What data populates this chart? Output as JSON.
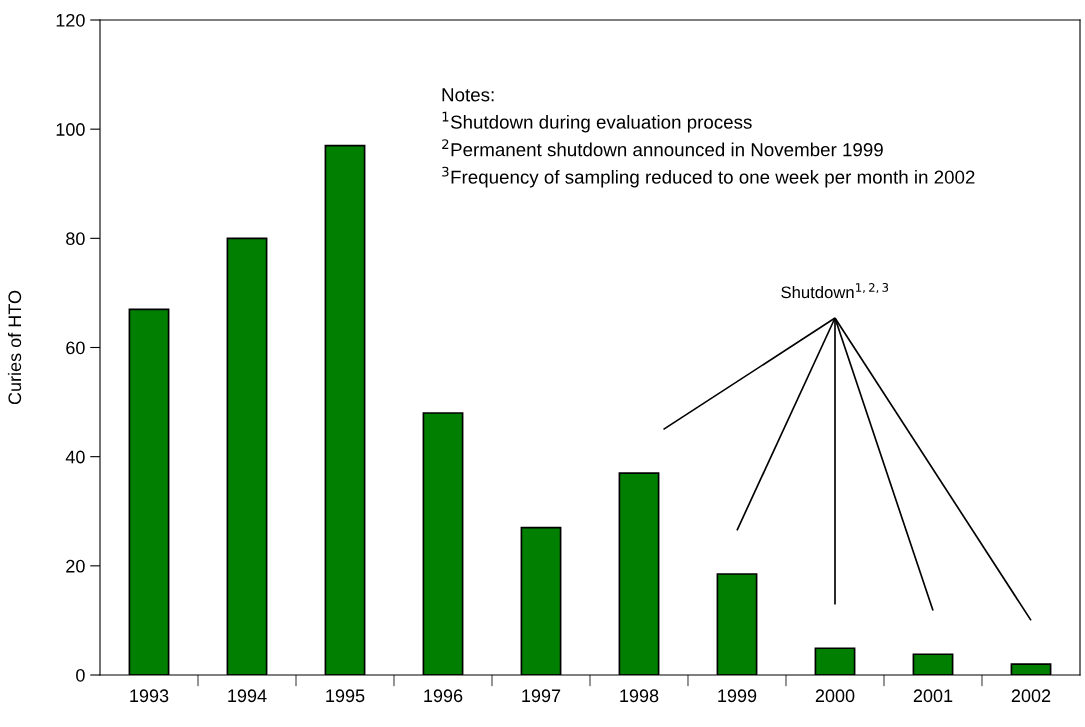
{
  "chart_data": {
    "type": "bar",
    "ylabel": "Curies of HTO",
    "categories": [
      "1993",
      "1994",
      "1995",
      "1996",
      "1997",
      "1998",
      "1999",
      "2000",
      "2001",
      "2002"
    ],
    "values": [
      67,
      80,
      97,
      48,
      27,
      37,
      18.5,
      4.9,
      3.8,
      2.0
    ],
    "color": "#007f00",
    "ylim": [
      0,
      120
    ],
    "yticks": [
      0,
      20,
      40,
      60,
      80,
      100,
      120
    ],
    "grid": false,
    "legend": false,
    "annotations": [
      "Notes:",
      "$^{1}$Shutdown during evaluation process",
      "$^{2}$Permanent shutdown announced in November 1999",
      "$^{3}$Frequency of sampling reduced to one week per month in 2002",
      "Shutdown$^{1,2,3}$"
    ]
  }
}
